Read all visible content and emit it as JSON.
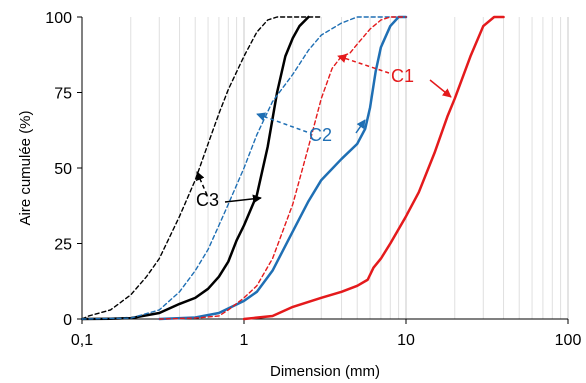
{
  "chart_data": {
    "type": "line",
    "title": "",
    "xlabel": "Dimension (mm)",
    "ylabel": "Aire cumulée (%)",
    "x_scale": "log",
    "xlim": [
      0.1,
      100
    ],
    "ylim": [
      0,
      100
    ],
    "x_ticks": [
      "0,1",
      "1",
      "10",
      "100"
    ],
    "x_tick_values": [
      0.1,
      1,
      10,
      100
    ],
    "y_ticks": [
      "0",
      "25",
      "50",
      "75",
      "100"
    ],
    "y_tick_values": [
      0,
      25,
      50,
      75,
      100
    ],
    "grid": "vertical-minor-log",
    "legend": "none",
    "series": [
      {
        "color": "#000000",
        "dash": "dashed",
        "points": [
          [
            0.1,
            0
          ],
          [
            0.11,
            1
          ],
          [
            0.15,
            3
          ],
          [
            0.2,
            8
          ],
          [
            0.25,
            14
          ],
          [
            0.3,
            20
          ],
          [
            0.4,
            34
          ],
          [
            0.5,
            46
          ],
          [
            0.6,
            58
          ],
          [
            0.7,
            68
          ],
          [
            0.8,
            76
          ],
          [
            1.0,
            87
          ],
          [
            1.2,
            95
          ],
          [
            1.4,
            99
          ],
          [
            1.6,
            100
          ],
          [
            3.0,
            100
          ]
        ]
      },
      {
        "color": "#000000",
        "dash": "solid",
        "points": [
          [
            0.1,
            0
          ],
          [
            0.15,
            0.1
          ],
          [
            0.2,
            0.3
          ],
          [
            0.3,
            2
          ],
          [
            0.4,
            5
          ],
          [
            0.5,
            7
          ],
          [
            0.6,
            10
          ],
          [
            0.7,
            14
          ],
          [
            0.8,
            19
          ],
          [
            0.9,
            26
          ],
          [
            1.0,
            31
          ],
          [
            1.2,
            41
          ],
          [
            1.4,
            57
          ],
          [
            1.6,
            75
          ],
          [
            1.8,
            87
          ],
          [
            2.0,
            93
          ],
          [
            2.2,
            97
          ],
          [
            2.5,
            100
          ]
        ]
      },
      {
        "color": "#1f6fb4",
        "dash": "dashed",
        "points": [
          [
            0.1,
            0
          ],
          [
            0.2,
            0.3
          ],
          [
            0.3,
            3
          ],
          [
            0.4,
            9
          ],
          [
            0.5,
            16
          ],
          [
            0.6,
            23
          ],
          [
            0.7,
            31
          ],
          [
            0.8,
            38
          ],
          [
            1.0,
            50
          ],
          [
            1.2,
            61
          ],
          [
            1.5,
            72
          ],
          [
            2.0,
            81
          ],
          [
            2.5,
            89
          ],
          [
            3.0,
            94
          ],
          [
            4.0,
            98
          ],
          [
            5.0,
            100
          ],
          [
            9.0,
            100
          ]
        ]
      },
      {
        "color": "#1f6fb4",
        "dash": "solid",
        "points": [
          [
            0.3,
            0
          ],
          [
            0.5,
            0.5
          ],
          [
            0.7,
            2
          ],
          [
            1.0,
            6
          ],
          [
            1.2,
            9
          ],
          [
            1.5,
            16
          ],
          [
            2.0,
            29
          ],
          [
            2.5,
            39
          ],
          [
            3.0,
            46
          ],
          [
            4.0,
            53
          ],
          [
            5.0,
            58
          ],
          [
            5.6,
            63
          ],
          [
            6.0,
            70
          ],
          [
            6.5,
            82
          ],
          [
            7.0,
            90
          ],
          [
            8.0,
            97
          ],
          [
            9.0,
            100
          ],
          [
            10.0,
            100
          ]
        ]
      },
      {
        "color": "#e41a1c",
        "dash": "dashed",
        "points": [
          [
            0.3,
            0
          ],
          [
            0.5,
            0.3
          ],
          [
            0.7,
            1
          ],
          [
            0.8,
            3
          ],
          [
            1.0,
            7
          ],
          [
            1.2,
            11
          ],
          [
            1.5,
            20
          ],
          [
            2.0,
            38
          ],
          [
            2.5,
            57
          ],
          [
            3.0,
            73
          ],
          [
            3.5,
            83
          ],
          [
            4.0,
            87
          ],
          [
            4.5,
            88
          ],
          [
            5.0,
            91
          ],
          [
            6.0,
            96
          ],
          [
            7.0,
            99
          ],
          [
            8.0,
            100
          ],
          [
            10.0,
            100
          ]
        ]
      },
      {
        "color": "#e41a1c",
        "dash": "solid",
        "points": [
          [
            1.0,
            0
          ],
          [
            1.5,
            1
          ],
          [
            2.0,
            4
          ],
          [
            3.0,
            7
          ],
          [
            4.0,
            9
          ],
          [
            5.0,
            11
          ],
          [
            5.8,
            13
          ],
          [
            6.3,
            17
          ],
          [
            7.0,
            20
          ],
          [
            8.0,
            25
          ],
          [
            10.0,
            34
          ],
          [
            12.0,
            42
          ],
          [
            15.0,
            55
          ],
          [
            18.0,
            67
          ],
          [
            20.0,
            73
          ],
          [
            25.0,
            87
          ],
          [
            30.0,
            97
          ],
          [
            35.0,
            100
          ],
          [
            40.0,
            100
          ]
        ]
      }
    ],
    "annotations": [
      {
        "text": "C1",
        "color": "#e41a1c",
        "x": 6.5,
        "y": 82
      },
      {
        "text": "C2",
        "color": "#1f6fb4",
        "x": 1.6,
        "y": 62
      },
      {
        "text": "C3",
        "color": "#000000",
        "x": 0.6,
        "y": 40
      }
    ]
  }
}
